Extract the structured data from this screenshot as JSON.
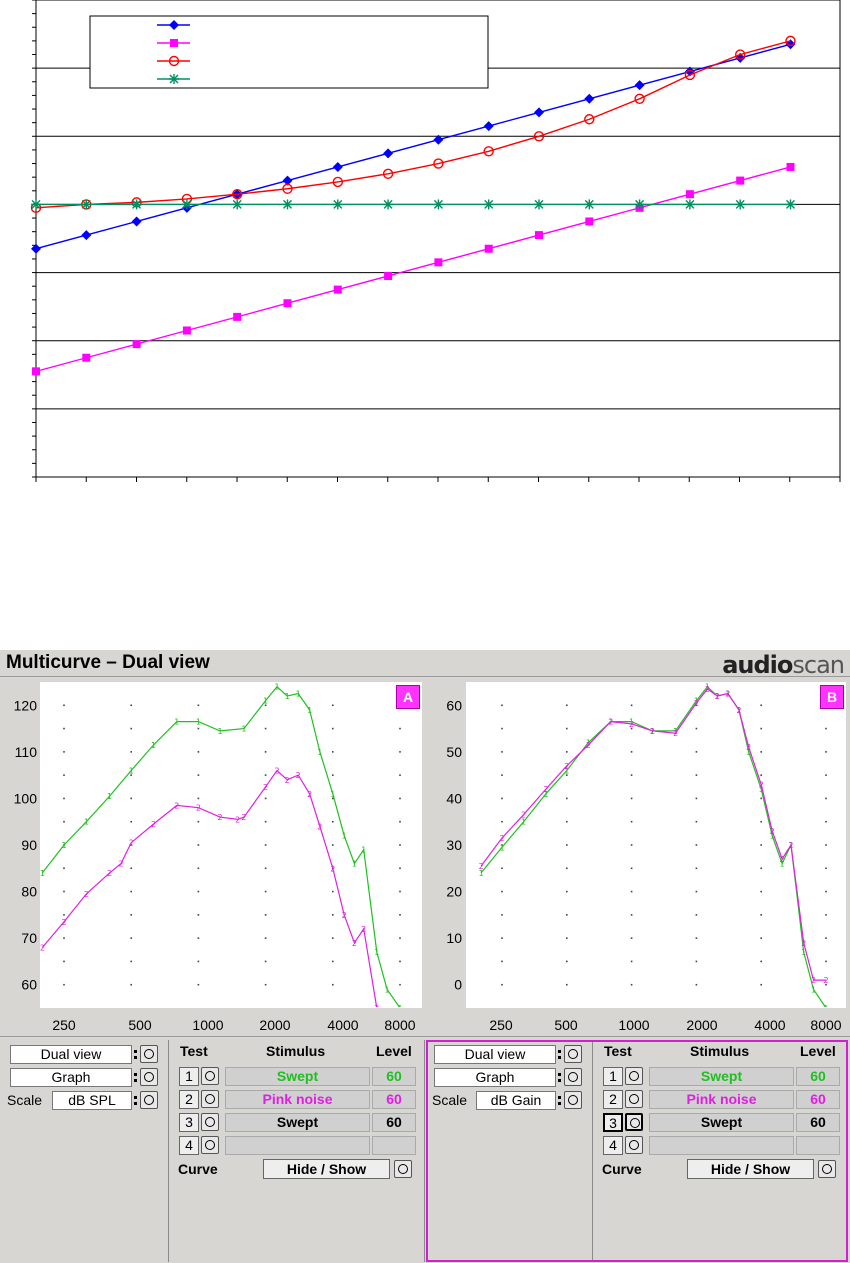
{
  "colors": {
    "series_blue": "#0000ff",
    "series_magenta": "#ff00ff",
    "series_red": "#ff0000",
    "series_green": "#009060",
    "curve1_green": "#20c020",
    "curve2_magenta": "#e020e0",
    "badge_magenta": "#ff33ff"
  },
  "chart_data": [
    {
      "type": "line",
      "x": [
        1,
        2,
        3,
        4,
        5,
        6,
        7,
        8,
        9,
        10,
        11,
        12,
        13,
        14,
        15,
        16
      ],
      "ylim": [
        0,
        7
      ],
      "grid": true,
      "legend": "top-left",
      "series": [
        {
          "marker": "diamond",
          "values": [
            3.35,
            3.55,
            3.75,
            3.95,
            4.15,
            4.35,
            4.55,
            4.75,
            4.95,
            5.15,
            5.35,
            5.55,
            5.75,
            5.95,
            6.15,
            6.35
          ]
        },
        {
          "marker": "square",
          "values": [
            1.55,
            1.75,
            1.95,
            2.15,
            2.35,
            2.55,
            2.75,
            2.95,
            3.15,
            3.35,
            3.55,
            3.75,
            3.95,
            4.15,
            4.35,
            4.55
          ]
        },
        {
          "marker": "circle-open",
          "values": [
            3.95,
            4.0,
            4.03,
            4.08,
            4.15,
            4.23,
            4.33,
            4.45,
            4.6,
            4.78,
            5.0,
            5.25,
            5.55,
            5.9,
            6.2,
            6.4
          ]
        },
        {
          "marker": "asterisk",
          "values": [
            4,
            4,
            4,
            4,
            4,
            4,
            4,
            4,
            4,
            4,
            4,
            4,
            4,
            4,
            4,
            4
          ]
        }
      ]
    },
    {
      "type": "line",
      "badge": "A",
      "x_scale": "log",
      "xticks": [
        "250",
        "500",
        "1000",
        "2000",
        "4000",
        "8000"
      ],
      "yticks": [
        "120",
        "110",
        "100",
        "90",
        "80",
        "70",
        "60"
      ],
      "ylim": [
        55,
        125
      ],
      "series": [
        {
          "marker": "1",
          "x": [
            200,
            250,
            315,
            400,
            500,
            630,
            800,
            1000,
            1250,
            1600,
            2000,
            2250,
            2500,
            2800,
            3150,
            3500,
            4000,
            4500,
            5000,
            5500,
            6300,
            7000,
            8000
          ],
          "values": [
            84,
            90,
            95,
            100.5,
            106,
            111.5,
            116.5,
            116.5,
            114.5,
            115,
            121,
            124,
            122,
            122.5,
            119,
            110,
            101,
            92,
            86,
            89,
            67,
            59,
            55
          ]
        },
        {
          "marker": "2",
          "x": [
            200,
            250,
            315,
            400,
            450,
            500,
            630,
            800,
            1000,
            1250,
            1500,
            1600,
            2000,
            2250,
            2500,
            2800,
            3150,
            3500,
            4000,
            4500,
            5000,
            5500,
            6300,
            7000
          ],
          "values": [
            68,
            73.5,
            79.5,
            84,
            86,
            90.5,
            94.5,
            98.5,
            98,
            96,
            95.5,
            96,
            102.5,
            106,
            104,
            105,
            101,
            94,
            85,
            75,
            69,
            72,
            55,
            50
          ]
        }
      ]
    },
    {
      "type": "line",
      "badge": "B",
      "x_scale": "log",
      "xticks": [
        "250",
        "500",
        "1000",
        "2000",
        "4000",
        "8000"
      ],
      "yticks": [
        "60",
        "50",
        "40",
        "30",
        "20",
        "10",
        "0"
      ],
      "ylim": [
        -5,
        65
      ],
      "series": [
        {
          "marker": "1",
          "x": [
            200,
            250,
            315,
            400,
            500,
            630,
            800,
            1000,
            1250,
            1600,
            2000,
            2250,
            2500,
            2800,
            3150,
            3500,
            4000,
            4500,
            5000,
            5500,
            6300,
            7000,
            8000
          ],
          "values": [
            24,
            29.5,
            35,
            41,
            46,
            52,
            56.5,
            56.5,
            54.5,
            54.5,
            61,
            64,
            62,
            62.5,
            59,
            50,
            42,
            32,
            26,
            30,
            7,
            -1,
            -5
          ]
        },
        {
          "marker": "2",
          "x": [
            200,
            250,
            315,
            400,
            500,
            630,
            800,
            1000,
            1250,
            1600,
            2000,
            2250,
            2500,
            2800,
            3150,
            3500,
            4000,
            4500,
            5000,
            5500,
            6300,
            7000,
            8000
          ],
          "values": [
            25.5,
            31.5,
            36.5,
            42,
            47,
            51.5,
            56.5,
            56,
            54.5,
            54,
            60.5,
            63.5,
            62,
            62.5,
            59,
            51,
            43,
            33,
            27,
            30,
            9,
            1,
            1
          ]
        }
      ]
    }
  ],
  "app": {
    "title": "Multicurve – Dual view",
    "brand_a": "audio",
    "brand_b": "scan"
  },
  "left_panel": {
    "view_mode": "Dual view",
    "display": "Graph",
    "scale_label": "Scale",
    "scale_value": "dB SPL"
  },
  "right_panel": {
    "view_mode": "Dual view",
    "display": "Graph",
    "scale_label": "Scale",
    "scale_value": "dB Gain"
  },
  "tests": {
    "headers": {
      "test": "Test",
      "stimulus": "Stimulus",
      "level": "Level"
    },
    "rows": [
      {
        "num": "1",
        "stimulus": "Swept",
        "level": "60",
        "color": "#20c020"
      },
      {
        "num": "2",
        "stimulus": "Pink noise",
        "level": "60",
        "color": "#e020e0"
      },
      {
        "num": "3",
        "stimulus": "Swept",
        "level": "60",
        "color": "#000000"
      },
      {
        "num": "4",
        "stimulus": "",
        "level": "",
        "color": "#000000"
      }
    ],
    "curve_label": "Curve",
    "hide_show": "Hide / Show"
  }
}
